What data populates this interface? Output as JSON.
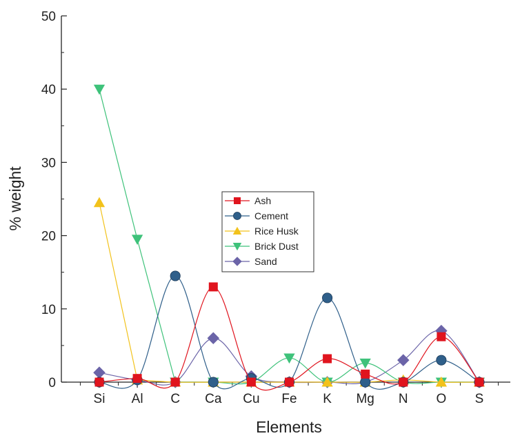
{
  "chart_data": {
    "type": "line",
    "title": "",
    "xlabel": "Elements",
    "ylabel": "% weight",
    "categories": [
      "Si",
      "Al",
      "C",
      "Ca",
      "Cu",
      "Fe",
      "K",
      "Mg",
      "N",
      "O",
      "S"
    ],
    "ylim": [
      0,
      50
    ],
    "yticks": [
      0,
      10,
      20,
      30,
      40,
      50
    ],
    "grid": false,
    "legend_position": "center",
    "series": [
      {
        "name": "Ash",
        "color": "#e0141e",
        "marker": "square",
        "values": [
          0,
          0.5,
          0,
          13,
          0,
          0,
          3.2,
          1.1,
          0,
          6.2,
          0
        ]
      },
      {
        "name": "Cement",
        "color": "#2f5f8a",
        "marker": "circle",
        "values": [
          0,
          0.3,
          14.5,
          0,
          0.5,
          0,
          11.5,
          0,
          0,
          3,
          0
        ]
      },
      {
        "name": "Rice Husk",
        "color": "#f2c21b",
        "marker": "triangle-up",
        "values": [
          24.5,
          0.3,
          0,
          0,
          0,
          0,
          0,
          0,
          0.3,
          0,
          0
        ]
      },
      {
        "name": "Brick Dust",
        "color": "#3ec27a",
        "marker": "triangle-down",
        "values": [
          40,
          19.5,
          0,
          0,
          0,
          3.3,
          0,
          2.6,
          0,
          0,
          0
        ]
      },
      {
        "name": "Sand",
        "color": "#6b64a8",
        "marker": "diamond",
        "values": [
          1.3,
          0.3,
          0,
          6,
          0.8,
          0,
          0,
          0,
          3,
          7,
          0
        ]
      }
    ]
  }
}
